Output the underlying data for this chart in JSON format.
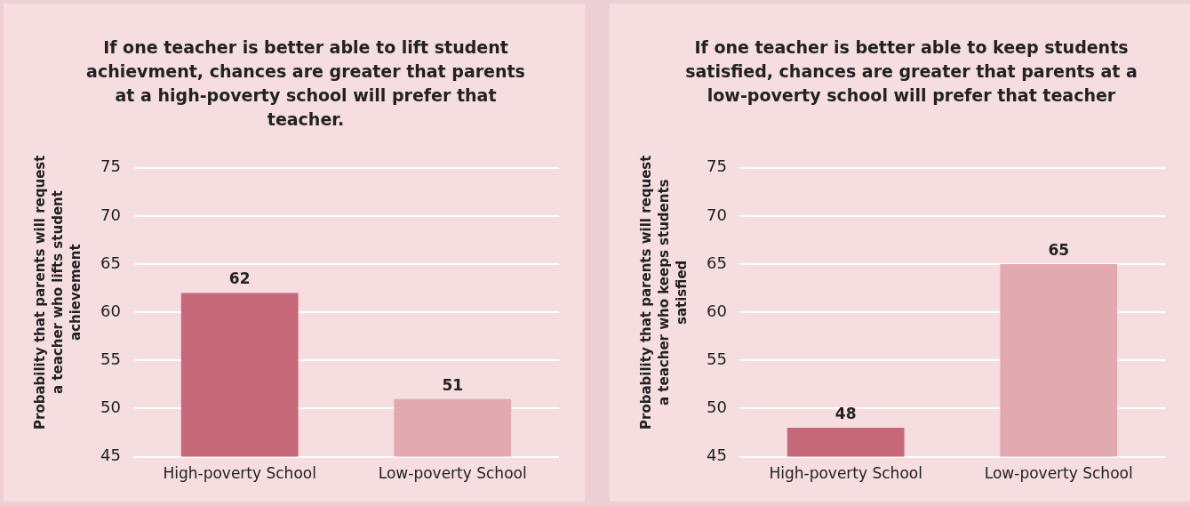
{
  "chart_data": [
    {
      "type": "bar",
      "title": "If one teacher is better able to lift student achievment, chances are greater that parents at a high-poverty school will prefer that teacher.",
      "ylabel": "Probability that parents will request a teacher who lifts student achievement",
      "categories": [
        "High-poverty School",
        "Low-poverty School"
      ],
      "values": [
        62,
        51
      ],
      "colors": [
        "#c4687a",
        "#e3a9b1"
      ],
      "ylim": [
        45,
        75
      ],
      "yticks": [
        45,
        50,
        55,
        60,
        65,
        70,
        75
      ],
      "grid": "y",
      "data_labels": true,
      "legend": false
    },
    {
      "type": "bar",
      "title": "If one teacher is better able to keep students satisfied, chances are greater that parents at a low-poverty school will prefer that teacher",
      "ylabel": "Probability that parents will request a teacher who keeps students satisfied",
      "categories": [
        "High-poverty School",
        "Low-poverty School"
      ],
      "values": [
        48,
        65
      ],
      "colors": [
        "#c4687a",
        "#e3a9b1"
      ],
      "ylim": [
        45,
        75
      ],
      "yticks": [
        45,
        50,
        55,
        60,
        65,
        70,
        75
      ],
      "grid": "y",
      "data_labels": true,
      "legend": false
    }
  ]
}
